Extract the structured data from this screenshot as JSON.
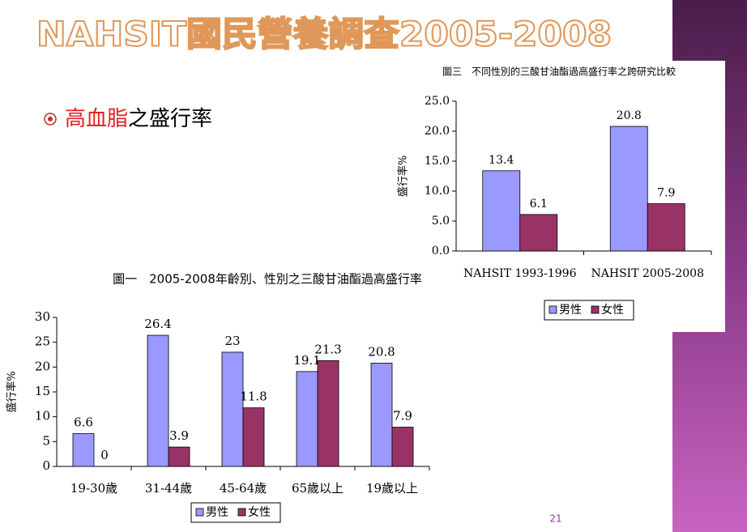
{
  "title": "NAHSIT國民營養調查2005-2008",
  "bullet": {
    "highlight": "高血脂",
    "rest": "之盛行率"
  },
  "page_number": "21",
  "chart_data": [
    {
      "type": "bar",
      "title": "圖三　不同性別的三酸甘油酯過高盛行率之跨研究比較",
      "y_label": "盛行率%",
      "categories": [
        "NAHSIT 1993-1996",
        "NAHSIT 2005-2008"
      ],
      "series": [
        {
          "name": "男性",
          "color": "#9999ff",
          "values": [
            13.4,
            20.8
          ]
        },
        {
          "name": "女性",
          "color": "#993366",
          "values": [
            6.1,
            7.9
          ]
        }
      ],
      "ylim": [
        0,
        25
      ],
      "yticks": [
        {
          "value": 0,
          "label": "0.0"
        },
        {
          "value": 5,
          "label": "5.0"
        },
        {
          "value": 10,
          "label": "10.0"
        },
        {
          "value": 15,
          "label": "15.0"
        },
        {
          "value": 20,
          "label": "20.0"
        },
        {
          "value": 25,
          "label": "25.0"
        }
      ],
      "legend": "bottom"
    },
    {
      "type": "bar",
      "title": "圖一　2005-2008年齡別、性別之三酸甘油酯過高盛行率",
      "y_label": "盛行率%",
      "categories": [
        "19-30歲",
        "31-44歲",
        "45-64歲",
        "65歲以上",
        "19歲以上"
      ],
      "series": [
        {
          "name": "男性",
          "color": "#9999ff",
          "values": [
            6.6,
            26.4,
            23,
            19.1,
            20.8
          ]
        },
        {
          "name": "女性",
          "color": "#993366",
          "values": [
            0,
            3.9,
            11.8,
            21.3,
            7.9
          ]
        }
      ],
      "ylim": [
        0,
        30
      ],
      "yticks": [
        0,
        5,
        10,
        15,
        20,
        25,
        30
      ],
      "legend": "bottom"
    }
  ]
}
